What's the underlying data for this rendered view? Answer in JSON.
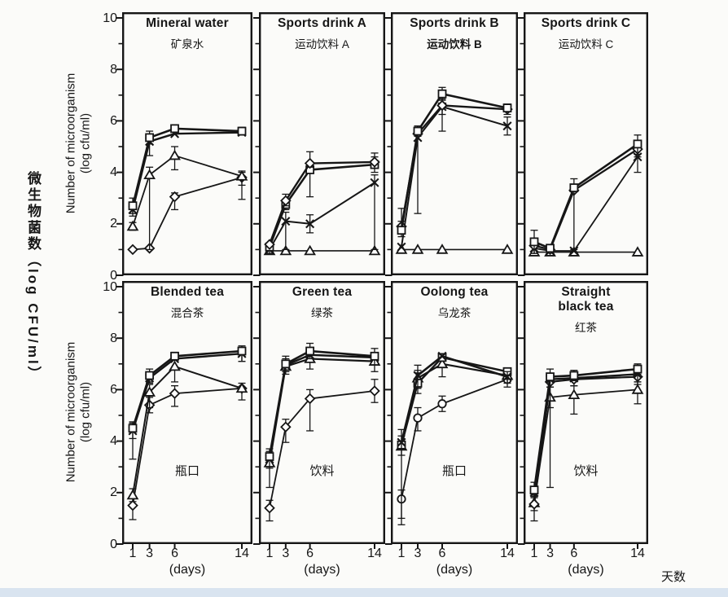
{
  "colors": {
    "ink": "#161616",
    "background": "#fbfbf9",
    "footer_strip": "#d9e4f0"
  },
  "labels": {
    "y_axis_cn_vertical": "微生物菌数（log CFU/ml）",
    "y_axis_en": "Number of microorganism\n(log cfu/ml)",
    "x_axis_unit": "(days)",
    "x_axis_cn": "天数"
  },
  "axes": {
    "y_range": [
      0,
      10
    ],
    "y_ticks": [
      10,
      8,
      6,
      4,
      2,
      0
    ],
    "y_minor_ticks": [
      9,
      7,
      5,
      3,
      1
    ],
    "x_tick_days": [
      1,
      3,
      6,
      14
    ]
  },
  "chart_data": [
    {
      "type": "line",
      "title": "Mineral water",
      "subtitle": "矿泉水",
      "annotation": "",
      "x_days": [
        1,
        3,
        6,
        14
      ],
      "ylim": [
        0,
        10
      ],
      "series": [
        {
          "marker": "diamond",
          "lw": 1.8,
          "values": [
            1.0,
            1.05,
            3.05,
            3.8
          ],
          "err_down": [
            0,
            0,
            0.5,
            0.3
          ],
          "err_up": [
            0,
            0,
            0.15,
            0.2
          ]
        },
        {
          "marker": "triangle",
          "lw": 1.8,
          "values": [
            1.9,
            3.9,
            4.65,
            3.85
          ],
          "err_down": [
            0.15,
            2.9,
            0.55,
            0.9
          ],
          "err_up": [
            0.15,
            0.3,
            0.35,
            0.2
          ]
        },
        {
          "marker": "x",
          "lw": 2.4,
          "values": [
            2.55,
            5.2,
            5.5,
            5.55
          ],
          "err_down": [
            0.25,
            0.55,
            0,
            0
          ],
          "err_up": [
            0.25,
            0.2,
            0,
            0
          ]
        },
        {
          "marker": "square",
          "lw": 2.6,
          "values": [
            2.7,
            5.35,
            5.7,
            5.6
          ],
          "err_down": [
            0.3,
            0.25,
            0,
            0.15
          ],
          "err_up": [
            0.3,
            0.25,
            0,
            0.15
          ]
        }
      ]
    },
    {
      "type": "line",
      "title": "Sports drink A",
      "subtitle": "运动饮料 A",
      "annotation": "",
      "x_days": [
        1,
        3,
        6,
        14
      ],
      "ylim": [
        0,
        10
      ],
      "series": [
        {
          "marker": "triangle",
          "lw": 1.6,
          "values": [
            0.95,
            0.95,
            0.95,
            0.95
          ],
          "err_down": [
            0,
            0,
            0,
            0
          ],
          "err_up": [
            0,
            0,
            0,
            0
          ]
        },
        {
          "marker": "x",
          "lw": 2.0,
          "values": [
            1.0,
            2.1,
            2.0,
            3.6
          ],
          "err_down": [
            0.15,
            1.1,
            0.35,
            2.6
          ],
          "err_up": [
            0.1,
            0.35,
            0.35,
            0.3
          ]
        },
        {
          "marker": "square",
          "lw": 2.6,
          "values": [
            1.1,
            2.75,
            4.1,
            4.3
          ],
          "err_down": [
            0,
            0.2,
            1.05,
            0.3
          ],
          "err_up": [
            0,
            0.2,
            0.2,
            0.3
          ]
        },
        {
          "marker": "diamond",
          "lw": 2.4,
          "values": [
            1.2,
            2.9,
            4.35,
            4.4
          ],
          "err_down": [
            0,
            0.2,
            0.15,
            0.25
          ],
          "err_up": [
            0,
            0.25,
            0.45,
            0.35
          ]
        }
      ]
    },
    {
      "type": "line",
      "title": "Sports drink B",
      "subtitle": "运动饮料 B",
      "subtitle_bold": true,
      "annotation": "",
      "x_days": [
        1,
        3,
        6,
        14
      ],
      "ylim": [
        0,
        10
      ],
      "series": [
        {
          "marker": "triangle",
          "lw": 1.6,
          "values": [
            1.0,
            1.0,
            1.0,
            1.0
          ],
          "err_down": [
            0,
            0,
            0,
            0
          ],
          "err_up": [
            0,
            0,
            0,
            0
          ]
        },
        {
          "marker": "x",
          "lw": 2.0,
          "values": [
            1.1,
            5.35,
            6.55,
            5.8
          ],
          "err_down": [
            0,
            0,
            0.3,
            0.35
          ],
          "err_up": [
            0,
            0,
            0.3,
            0.35
          ]
        },
        {
          "marker": "diamond",
          "lw": 2.3,
          "values": [
            1.9,
            5.5,
            6.6,
            6.45
          ],
          "err_down": [
            0.3,
            3.1,
            1.0,
            0.2
          ],
          "err_up": [
            0.2,
            0.3,
            0.3,
            0.2
          ]
        },
        {
          "marker": "square",
          "lw": 2.6,
          "values": [
            1.75,
            5.6,
            7.05,
            6.5
          ],
          "err_down": [
            0.25,
            0.2,
            0.25,
            0.15
          ],
          "err_up": [
            0.85,
            0.2,
            0.25,
            0.15
          ]
        }
      ]
    },
    {
      "type": "line",
      "title": "Sports drink C",
      "subtitle": "运动饮料 C",
      "annotation": "",
      "x_days": [
        1,
        3,
        6,
        14
      ],
      "ylim": [
        0,
        10
      ],
      "series": [
        {
          "marker": "triangle",
          "lw": 1.6,
          "values": [
            0.9,
            0.9,
            0.9,
            0.9
          ],
          "err_down": [
            0,
            0,
            0,
            0
          ],
          "err_up": [
            0,
            0,
            0,
            0
          ]
        },
        {
          "marker": "x",
          "lw": 1.8,
          "values": [
            1.05,
            0.95,
            0.95,
            4.6
          ],
          "err_down": [
            0,
            0,
            0,
            0.6
          ],
          "err_up": [
            0,
            0,
            0,
            0.3
          ]
        },
        {
          "marker": "diamond",
          "lw": 2.3,
          "values": [
            1.15,
            1.0,
            3.3,
            4.9
          ],
          "err_down": [
            0.3,
            0,
            0,
            0.2
          ],
          "err_up": [
            0.3,
            0,
            0,
            0.2
          ]
        },
        {
          "marker": "square",
          "lw": 2.6,
          "values": [
            1.3,
            1.05,
            3.4,
            5.1
          ],
          "err_down": [
            0.45,
            0,
            2.4,
            0.5
          ],
          "err_up": [
            0.45,
            0.15,
            0.35,
            0.35
          ]
        }
      ]
    },
    {
      "type": "line",
      "title": "Blended tea",
      "subtitle": "混合茶",
      "annotation": "瓶口",
      "x_days": [
        1,
        3,
        6,
        14
      ],
      "ylim": [
        0,
        10
      ],
      "series": [
        {
          "marker": "diamond",
          "lw": 1.8,
          "values": [
            1.5,
            5.4,
            5.85,
            6.05
          ],
          "err_down": [
            0.55,
            0.3,
            0.5,
            0
          ],
          "err_up": [
            0.3,
            0.3,
            0.3,
            0
          ]
        },
        {
          "marker": "triangle",
          "lw": 2.0,
          "values": [
            1.9,
            5.9,
            6.9,
            6.05
          ],
          "err_down": [
            0.25,
            0.6,
            0.6,
            0.45
          ],
          "err_up": [
            0.25,
            0.3,
            0.3,
            0.2
          ]
        },
        {
          "marker": "x",
          "lw": 2.4,
          "values": [
            4.4,
            6.45,
            7.2,
            7.4
          ],
          "err_down": [
            0.3,
            0.2,
            0,
            0.3
          ],
          "err_up": [
            0.3,
            0.2,
            0,
            0.2
          ]
        },
        {
          "marker": "square",
          "lw": 2.6,
          "values": [
            4.5,
            6.55,
            7.3,
            7.5
          ],
          "err_down": [
            1.2,
            0.25,
            0.15,
            0.4
          ],
          "err_up": [
            0.25,
            0.25,
            0.15,
            0.2
          ]
        }
      ]
    },
    {
      "type": "line",
      "title": "Green tea",
      "subtitle": "绿茶",
      "annotation": "饮料",
      "x_days": [
        1,
        3,
        6,
        14
      ],
      "ylim": [
        0,
        10
      ],
      "series": [
        {
          "marker": "diamond",
          "lw": 1.8,
          "values": [
            1.4,
            4.55,
            5.65,
            5.95
          ],
          "err_down": [
            0.5,
            0.6,
            1.25,
            0.45
          ],
          "err_up": [
            0.3,
            0.3,
            0.35,
            0.45
          ]
        },
        {
          "marker": "triangle",
          "lw": 2.2,
          "values": [
            3.15,
            6.9,
            7.2,
            7.1
          ],
          "err_down": [
            0.2,
            0.3,
            0.4,
            0.4
          ],
          "err_up": [
            0.2,
            0.3,
            0.3,
            0.3
          ]
        },
        {
          "marker": "x",
          "lw": 2.4,
          "values": [
            3.3,
            6.95,
            7.35,
            7.25
          ],
          "err_down": [
            1.1,
            0,
            0,
            0
          ],
          "err_up": [
            0.3,
            0,
            0,
            0
          ]
        },
        {
          "marker": "square",
          "lw": 2.6,
          "values": [
            3.4,
            7.0,
            7.5,
            7.3
          ],
          "err_down": [
            0,
            0.3,
            0.3,
            0.35
          ],
          "err_up": [
            0.3,
            0.3,
            0.3,
            0.3
          ]
        }
      ]
    },
    {
      "type": "line",
      "title": "Oolong tea",
      "subtitle": "乌龙茶",
      "annotation": "瓶口",
      "x_days": [
        1,
        3,
        6,
        14
      ],
      "ylim": [
        0,
        10
      ],
      "series": [
        {
          "marker": "circle",
          "lw": 1.8,
          "values": [
            1.75,
            4.9,
            5.45,
            6.4
          ],
          "err_down": [
            1.0,
            0.5,
            0.3,
            0
          ],
          "err_up": [
            0.35,
            0.4,
            0.3,
            0
          ]
        },
        {
          "marker": "triangle",
          "lw": 2.2,
          "values": [
            3.8,
            6.45,
            7.0,
            6.55
          ],
          "err_down": [
            2.8,
            0.4,
            0.5,
            0.3
          ],
          "err_up": [
            0.4,
            0.3,
            0.2,
            0.2
          ]
        },
        {
          "marker": "square",
          "lw": 2.4,
          "values": [
            3.85,
            6.25,
            7.25,
            6.7
          ],
          "err_down": [
            0,
            0.4,
            0,
            0
          ],
          "err_up": [
            0,
            0.4,
            0,
            0
          ]
        },
        {
          "marker": "x",
          "lw": 2.6,
          "values": [
            3.95,
            6.55,
            7.3,
            6.5
          ],
          "err_down": [
            0.5,
            0.5,
            0,
            0.4
          ],
          "err_up": [
            0.5,
            0.4,
            0,
            0.2
          ]
        }
      ]
    },
    {
      "type": "line",
      "title": "Straight\nblack tea",
      "subtitle": "红茶",
      "annotation": "饮料",
      "x_days": [
        1,
        3,
        6,
        14
      ],
      "ylim": [
        0,
        10
      ],
      "series": [
        {
          "marker": "triangle",
          "lw": 1.8,
          "values": [
            1.6,
            5.7,
            5.8,
            6.0
          ],
          "err_down": [
            0.3,
            0.4,
            0.75,
            0.55
          ],
          "err_up": [
            0.3,
            0.4,
            0.35,
            0.3
          ]
        },
        {
          "marker": "diamond",
          "lw": 2.2,
          "values": [
            1.55,
            6.3,
            6.4,
            6.5
          ],
          "err_down": [
            0.65,
            0.2,
            0.25,
            0.2
          ],
          "err_up": [
            0.3,
            0.2,
            0.25,
            0.2
          ]
        },
        {
          "marker": "x",
          "lw": 2.4,
          "values": [
            2.0,
            6.4,
            6.45,
            6.6
          ],
          "err_down": [
            0,
            0,
            0,
            0.4
          ],
          "err_up": [
            0,
            0,
            0,
            0.2
          ]
        },
        {
          "marker": "square",
          "lw": 2.6,
          "values": [
            2.1,
            6.5,
            6.55,
            6.8
          ],
          "err_down": [
            0.3,
            4.3,
            0.2,
            0.2
          ],
          "err_up": [
            0.3,
            0.3,
            0.2,
            0.2
          ]
        }
      ]
    }
  ]
}
